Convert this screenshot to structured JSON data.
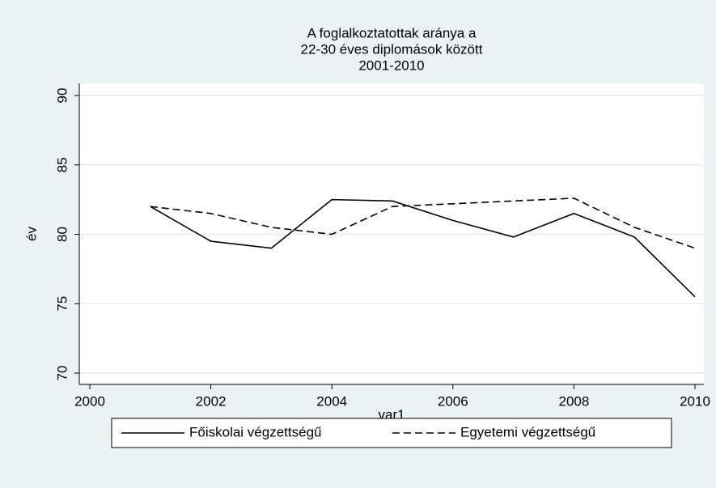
{
  "chart_data": {
    "type": "line",
    "title": [
      "A foglalkoztatottak aránya a",
      "22-30 éves diplomások között",
      "2001-2010"
    ],
    "x_label": "var1",
    "y_label": "év",
    "x": [
      2001,
      2002,
      2003,
      2004,
      2005,
      2006,
      2007,
      2008,
      2009,
      2010
    ],
    "series": [
      {
        "name": "Főiskolai végzettségű",
        "color": "#000000",
        "dash": "solid",
        "values": [
          82,
          79.5,
          79,
          82.5,
          82.4,
          81,
          79.8,
          81.5,
          79.8,
          75.5
        ]
      },
      {
        "name": "Egyetemi végzettségű",
        "color": "#000000",
        "dash": "dashed",
        "values": [
          82,
          81.5,
          80.5,
          80,
          82,
          82.2,
          82.4,
          82.6,
          80.5,
          79
        ]
      }
    ],
    "xlim": [
      2000,
      2010
    ],
    "xticks": [
      2000,
      2002,
      2004,
      2006,
      2008,
      2010
    ],
    "ylim": [
      70,
      90
    ],
    "yticks": [
      70,
      75,
      80,
      85,
      90
    ],
    "grid": true,
    "legend": "bottom"
  }
}
